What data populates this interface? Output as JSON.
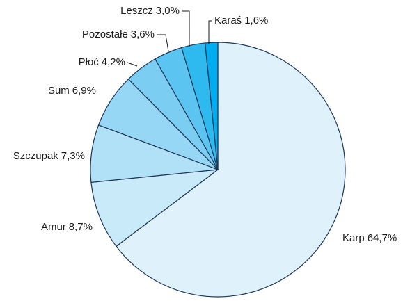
{
  "chart_data": {
    "type": "pie",
    "categories": [
      "Karp",
      "Amur",
      "Szczupak",
      "Sum",
      "Płoć",
      "Pozostałe",
      "Leszcz",
      "Karaś"
    ],
    "values": [
      64.7,
      8.7,
      7.3,
      6.9,
      4.2,
      3.6,
      3.0,
      1.6
    ],
    "value_labels": [
      "64,7%",
      "8,7%",
      "7,3%",
      "6,9%",
      "4,2%",
      "3,6%",
      "3,0%",
      "1,6%"
    ],
    "colors": [
      "#dff2fb",
      "#c9eaf8",
      "#b1e1f6",
      "#95d7f4",
      "#7bcef2",
      "#5cc4f0",
      "#2ebaee",
      "#00adef"
    ]
  }
}
